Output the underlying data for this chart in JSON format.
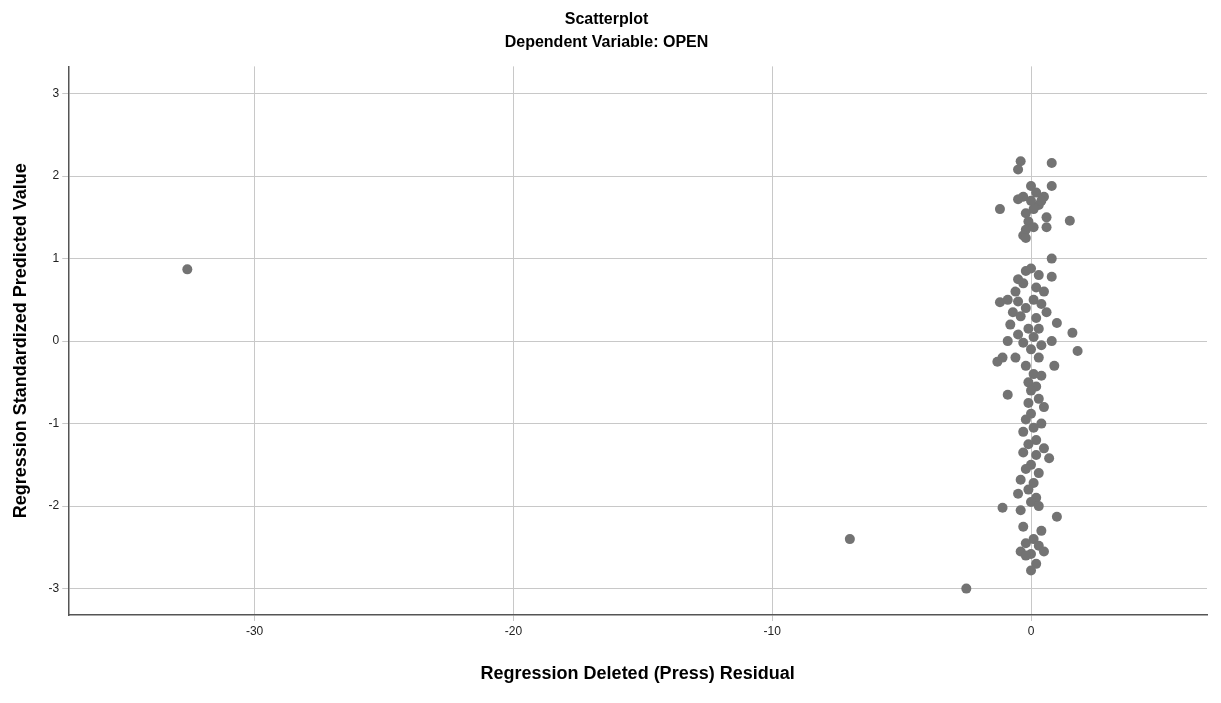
{
  "chart_data": {
    "type": "scatter",
    "title": "Scatterplot",
    "subtitle": "Dependent Variable: OPEN",
    "xlabel": "Regression Deleted (Press) Residual",
    "ylabel": "Regression Standardized Predicted Value",
    "xlim": [
      -37.2,
      6.8
    ],
    "xticks": [
      -30,
      -20,
      -10,
      0
    ],
    "ylim": [
      -3.32,
      3.33
    ],
    "yticks": [
      -3,
      -2,
      -1,
      0,
      1,
      2,
      3
    ],
    "grid": true,
    "legend": false,
    "marker": "circle",
    "series": [
      {
        "color": "#737373",
        "x": [
          -0.4,
          -0.5,
          0.8,
          0.8,
          0.0,
          -0.3,
          -0.5,
          -1.2,
          0.2,
          0.5,
          0.3,
          0.1,
          -0.2,
          -0.1,
          0.6,
          0.6,
          1.5,
          -0.2,
          0.1,
          -0.3,
          -0.2,
          0.8,
          0.0,
          0.4,
          0.8,
          -0.2,
          0.0,
          0.3,
          -0.5,
          -0.3,
          0.2,
          0.5,
          -0.6,
          -0.9,
          -0.5,
          -1.2,
          0.1,
          0.4,
          -0.2,
          0.6,
          -0.7,
          -0.4,
          0.2,
          1.0,
          -0.8,
          -0.1,
          0.3,
          1.6,
          -0.5,
          0.1,
          0.8,
          -0.9,
          -0.3,
          0.4,
          1.8,
          0.0,
          -1.1,
          -1.3,
          -0.6,
          0.3,
          0.9,
          -0.2,
          0.1,
          0.4,
          -0.1,
          0.2,
          -0.9,
          0.0,
          0.3,
          -0.1,
          0.5,
          0.0,
          -0.2,
          0.4,
          0.1,
          -0.3,
          0.2,
          -0.1,
          0.5,
          -0.3,
          0.2,
          0.7,
          0.0,
          -0.2,
          0.3,
          -0.4,
          0.1,
          -0.1,
          -0.5,
          0.2,
          0.0,
          0.3,
          -1.1,
          -0.4,
          1.0,
          -0.3,
          0.4,
          0.1,
          -0.2,
          0.3,
          -0.4,
          0.0,
          -0.2,
          0.5,
          0.2,
          0.0,
          -32.6,
          -7.0,
          -2.5
        ],
        "values": [
          2.18,
          2.08,
          2.16,
          1.88,
          1.88,
          1.75,
          1.72,
          1.6,
          1.8,
          1.75,
          1.65,
          1.6,
          1.55,
          1.45,
          1.5,
          1.38,
          1.46,
          1.35,
          1.38,
          1.28,
          1.25,
          1.0,
          1.7,
          1.7,
          0.78,
          0.85,
          0.88,
          0.8,
          0.75,
          0.7,
          0.65,
          0.6,
          0.6,
          0.5,
          0.48,
          0.47,
          0.5,
          0.45,
          0.4,
          0.35,
          0.35,
          0.3,
          0.28,
          0.22,
          0.2,
          0.15,
          0.15,
          0.1,
          0.08,
          0.05,
          0.0,
          0.0,
          -0.02,
          -0.05,
          -0.12,
          -0.1,
          -0.2,
          -0.25,
          -0.2,
          -0.2,
          -0.3,
          -0.3,
          -0.4,
          -0.42,
          -0.5,
          -0.55,
          -0.65,
          -0.6,
          -0.7,
          -0.75,
          -0.8,
          -0.88,
          -0.95,
          -1.0,
          -1.05,
          -1.1,
          -1.2,
          -1.25,
          -1.3,
          -1.35,
          -1.38,
          -1.42,
          -1.5,
          -1.55,
          -1.6,
          -1.68,
          -1.72,
          -1.8,
          -1.85,
          -1.9,
          -1.95,
          -2.0,
          -2.02,
          -2.05,
          -2.13,
          -2.25,
          -2.3,
          -2.4,
          -2.45,
          -2.48,
          -2.55,
          -2.58,
          -2.6,
          -2.55,
          -2.7,
          -2.78,
          0.87,
          -2.4,
          -3.0
        ]
      }
    ]
  }
}
